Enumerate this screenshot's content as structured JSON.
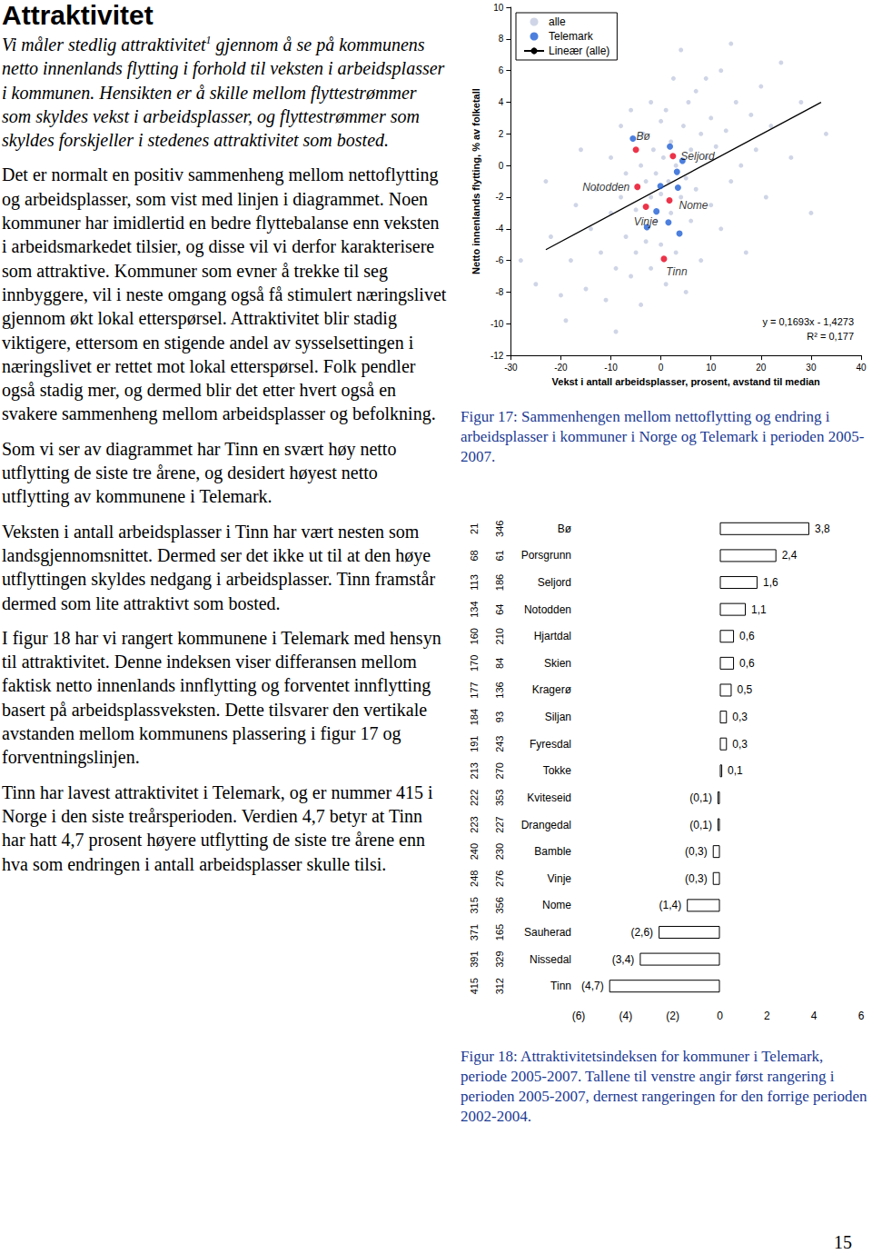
{
  "page": {
    "heading": "Attraktivitet",
    "paragraphs": [
      {
        "italic": true,
        "parts": [
          {
            "text": "Vi måler stedlig attraktivitet"
          },
          {
            "text": "1",
            "sup": true
          },
          {
            "text": " gjennom å se på kommunens netto innenlands flytting i forhold til veksten i arbeidsplasser i kommunen. Hensikten er å skille mellom flyttestrømmer som skyldes vekst i arbeidsplasser, og flyttestrømmer som skyldes forskjeller i stedenes attraktivitet som bosted."
          }
        ]
      },
      {
        "italic": false,
        "parts": [
          {
            "text": "Det er normalt en positiv sammenheng mellom nettoflytting og arbeidsplasser, som vist med linjen i diagrammet. Noen kommuner har imidlertid en bedre flyttebalanse enn veksten i arbeidsmarkedet tilsier, og disse vil vi derfor karakterisere som attraktive. Kommuner som evner å trekke til seg innbyggere, vil i neste omgang også få stimulert næringslivet gjennom økt lokal etterspørsel. Attraktivitet blir stadig viktigere, ettersom en stigende andel av sysselsettingen i næringslivet er rettet mot lokal etterspørsel. Folk pendler også stadig mer, og dermed blir det etter hvert også en svakere sammenheng mellom arbeidsplasser og befolkning."
          }
        ]
      },
      {
        "italic": false,
        "parts": [
          {
            "text": "Som vi ser av diagrammet har Tinn en svært høy netto utflytting de siste tre årene, og desidert høyest netto utflytting av kommunene i Telemark."
          }
        ]
      },
      {
        "italic": false,
        "parts": [
          {
            "text": "Veksten i antall arbeidsplasser i Tinn har vært nesten som landsgjennomsnittet. Dermed ser det ikke ut til at den høye utflyttingen skyldes nedgang i arbeidsplasser. Tinn framstår dermed som lite attraktivt som bosted."
          }
        ]
      },
      {
        "italic": false,
        "parts": [
          {
            "text": "I figur 18 har vi rangert kommunene i Telemark med hensyn til attraktivitet. Denne indeksen viser differansen mellom faktisk netto innenlands innflytting og forventet innflytting basert på arbeidsplassveksten. Dette tilsvarer den vertikale avstanden mellom kommunens plassering i figur 17 og forventningslinjen."
          }
        ]
      },
      {
        "italic": false,
        "parts": [
          {
            "text": "Tinn har lavest attraktivitet i Telemark, og er nummer 415 i Norge i den siste treårsperioden. Verdien 4,7 betyr at Tinn har hatt 4,7 prosent høyere utflytting de siste tre årene enn hva som endringen i antall arbeidsplasser skulle tilsi."
          }
        ]
      }
    ],
    "captions": [
      "Figur 17: Sammenhengen mellom nettoflytting og endring i arbeidsplasser i kommuner i Norge og Telemark i perioden 2005-2007.",
      "Figur 18: Attraktivitetsindeksen for kommuner i Telemark, periode 2005-2007. Tallene til venstre angir først rangering i perioden 2005-2007, dernest rangeringen for den forrige perioden 2002-2004."
    ],
    "page_number": "15"
  },
  "chart_data": [
    {
      "type": "scatter",
      "xlabel": "Vekst i antall arbeidsplasser, prosent, avstand til median",
      "ylabel": "Netto innenlands flytting, % av folketall",
      "xlim": [
        -30,
        40
      ],
      "xticks": [
        -30,
        -20,
        -10,
        0,
        10,
        20,
        30,
        40
      ],
      "ylim": [
        -12,
        10
      ],
      "yticks": [
        -12,
        -10,
        -8,
        -6,
        -4,
        -2,
        0,
        2,
        4,
        6,
        8,
        10
      ],
      "grid": false,
      "legend": "upper left",
      "annotations": [
        "y = 0,1693x - 1,4273",
        "R² = 0,177"
      ],
      "series": [
        {
          "name": "alle",
          "color": "#c3cbe0",
          "marker": "circle",
          "x": [
            -25,
            -22,
            -20,
            -18,
            -17,
            -15,
            -14,
            -13,
            -12,
            -11,
            -10,
            -10,
            -9,
            -8,
            -8,
            -7,
            -7,
            -6,
            -6,
            -5,
            -5,
            -4,
            -4,
            -3.5,
            -3,
            -3,
            -2,
            -2,
            -2,
            -1.5,
            -1,
            -1,
            0,
            0,
            0,
            0.5,
            1,
            1,
            1.5,
            2,
            2,
            2.5,
            3,
            3,
            4,
            4,
            4.5,
            5,
            5,
            5.5,
            6,
            6,
            7,
            7,
            8,
            8,
            9,
            9,
            10,
            10,
            11,
            12,
            12,
            13,
            14,
            14,
            15,
            16,
            17,
            18,
            19,
            20,
            21,
            22,
            24,
            26,
            28,
            30,
            33,
            -19,
            -16,
            -9,
            -23,
            -28
          ],
          "values": [
            -7.5,
            -4.5,
            -8.2,
            -6,
            -2.5,
            -7.8,
            -4,
            -1.5,
            -5.5,
            -8.5,
            -3,
            0.5,
            -6.5,
            -2,
            2.5,
            -4.5,
            -0.5,
            -7,
            3.5,
            -2.8,
            -5.5,
            0,
            -8.8,
            2,
            -1,
            -4.8,
            4,
            -2,
            -6.5,
            1,
            -3.5,
            -0.5,
            2.8,
            -1.8,
            -5,
            0.5,
            -7.5,
            3.5,
            -1,
            1.5,
            -3,
            5.5,
            -5.5,
            0,
            7.3,
            -2,
            2.5,
            -0.8,
            -8,
            4,
            1,
            -3.5,
            4.7,
            -1.5,
            2,
            -6,
            0.5,
            5.5,
            -2.5,
            3,
            1.2,
            -4,
            6,
            2.2,
            7.7,
            -1,
            4,
            0,
            -5.5,
            3.2,
            1,
            5,
            -2,
            2.5,
            6.5,
            0.5,
            4,
            -3,
            2,
            -9.8,
            1,
            -10.5,
            -1,
            -6
          ]
        },
        {
          "name": "Telemark",
          "color": "#1f5fd6",
          "marker": "circle",
          "x": [
            -5,
            2.4,
            -4.7,
            -3,
            1.7,
            0.6,
            1.8,
            4.3,
            3.2,
            3.4,
            -0.1,
            -0.9,
            3.7,
            -2.8,
            1.5,
            -5.6
          ],
          "values": [
            1.0,
            0.6,
            -1.35,
            -2.6,
            -2.2,
            -5.9,
            1.2,
            0.3,
            -0.4,
            -1.4,
            -1.3,
            -2.9,
            -4.3,
            -3.9,
            -3.6,
            1.7
          ],
          "colors": [
            "#e8001c",
            "#e8001c",
            "#e8001c",
            "#e8001c",
            "#e8001c",
            "#e8001c",
            "#1f5fd6",
            "#1f5fd6",
            "#1f5fd6",
            "#1f5fd6",
            "#1f5fd6",
            "#1f5fd6",
            "#1f5fd6",
            "#1f5fd6",
            "#1f5fd6",
            "#1f5fd6"
          ],
          "point_labels": [
            "Bø",
            "Seljord",
            "Notodden",
            "Vinje",
            "Nome",
            "Tinn",
            null,
            null,
            null,
            null,
            null,
            null,
            null,
            null,
            null,
            null
          ]
        },
        {
          "name": "Lineær (alle)",
          "type": "line",
          "color": "#000000",
          "line_style": "solid",
          "x": [
            -23,
            32
          ],
          "values": [
            -5.32,
            3.99
          ]
        }
      ]
    },
    {
      "type": "bar",
      "orientation": "horizontal",
      "categories": [
        "Bø",
        "Porsgrunn",
        "Seljord",
        "Notodden",
        "Hjartdal",
        "Skien",
        "Kragerø",
        "Siljan",
        "Fyresdal",
        "Tokke",
        "Kviteseid",
        "Drangedal",
        "Bamble",
        "Vinje",
        "Nome",
        "Sauherad",
        "Nissedal",
        "Tinn"
      ],
      "values": [
        3.8,
        2.4,
        1.6,
        1.1,
        0.6,
        0.6,
        0.5,
        0.3,
        0.3,
        0.1,
        -0.1,
        -0.1,
        -0.3,
        -0.3,
        -1.4,
        -2.6,
        -3.4,
        -4.7
      ],
      "value_labels": [
        "3,8",
        "2,4",
        "1,6",
        "1,1",
        "0,6",
        "0,6",
        "0,5",
        "0,3",
        "0,3",
        "0,1",
        "(0,1)",
        "(0,1)",
        "(0,3)",
        "(0,3)",
        "(1,4)",
        "(2,6)",
        "(3,4)",
        "(4,7)"
      ],
      "color": "#ffffff",
      "data_labels": true,
      "grid": false,
      "xlim": [
        -6,
        6
      ],
      "xticks": [
        {
          "value": -6,
          "label": "(6)"
        },
        {
          "value": -4,
          "label": "(4)"
        },
        {
          "value": -2,
          "label": "(2)"
        },
        0,
        2,
        4,
        6
      ],
      "rank_first": [
        21,
        68,
        113,
        134,
        160,
        170,
        177,
        184,
        191,
        213,
        222,
        223,
        240,
        248,
        315,
        371,
        391,
        415
      ],
      "rank_previous": [
        346,
        61,
        186,
        64,
        210,
        84,
        136,
        93,
        243,
        270,
        353,
        227,
        230,
        276,
        356,
        165,
        329,
        312
      ]
    }
  ]
}
